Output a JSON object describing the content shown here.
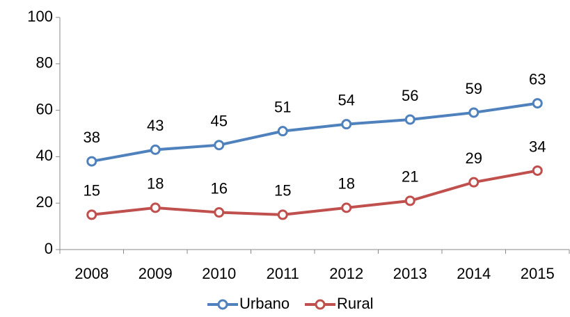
{
  "chart_data": {
    "type": "line",
    "categories": [
      "2008",
      "2009",
      "2010",
      "2011",
      "2012",
      "2013",
      "2014",
      "2015"
    ],
    "series": [
      {
        "name": "Urbano",
        "color": "#4f81bd",
        "values": [
          38,
          43,
          45,
          51,
          54,
          56,
          59,
          63
        ]
      },
      {
        "name": "Rural",
        "color": "#c0504d",
        "values": [
          15,
          18,
          16,
          15,
          18,
          21,
          29,
          34
        ]
      }
    ],
    "ylim": [
      0,
      100
    ],
    "yticks": [
      0,
      20,
      40,
      60,
      80,
      100
    ],
    "grid": false,
    "legend": "bottom"
  }
}
